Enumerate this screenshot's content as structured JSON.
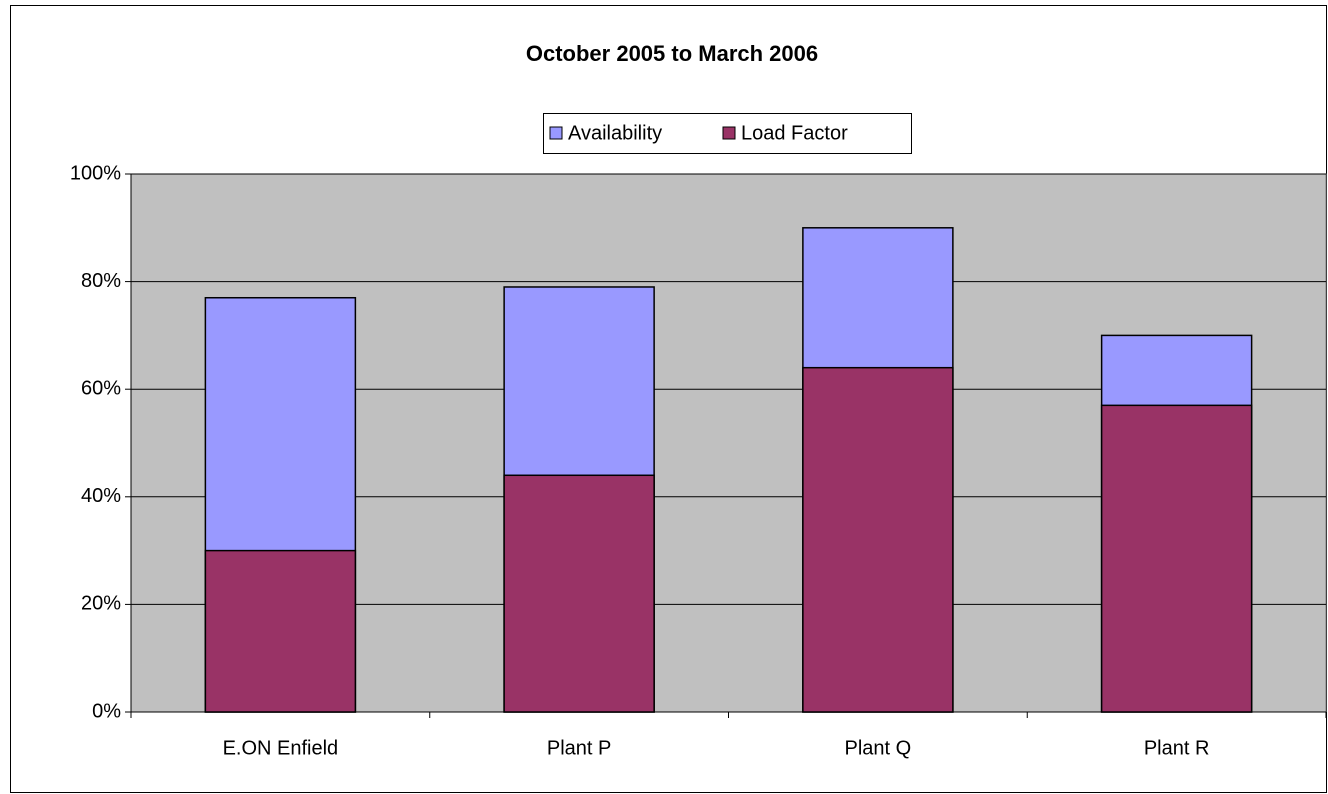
{
  "chart_data": {
    "type": "bar",
    "title": "October 2005 to March 2006",
    "categories": [
      "E.ON Enfield",
      "Plant P",
      "Plant Q",
      "Plant R"
    ],
    "series": [
      {
        "name": "Availability",
        "color": "#9999ff",
        "values": [
          77,
          79,
          90,
          70
        ]
      },
      {
        "name": "Load Factor",
        "color": "#993366",
        "values": [
          30,
          44,
          64,
          57
        ]
      }
    ],
    "ylim": [
      0,
      100
    ],
    "yticks": [
      {
        "value": 0,
        "label": "0%"
      },
      {
        "value": 20,
        "label": "20%"
      },
      {
        "value": 40,
        "label": "40%"
      },
      {
        "value": 60,
        "label": "60%"
      },
      {
        "value": 80,
        "label": "80%"
      },
      {
        "value": 100,
        "label": "100%"
      }
    ],
    "grid": true,
    "legend": "top"
  }
}
